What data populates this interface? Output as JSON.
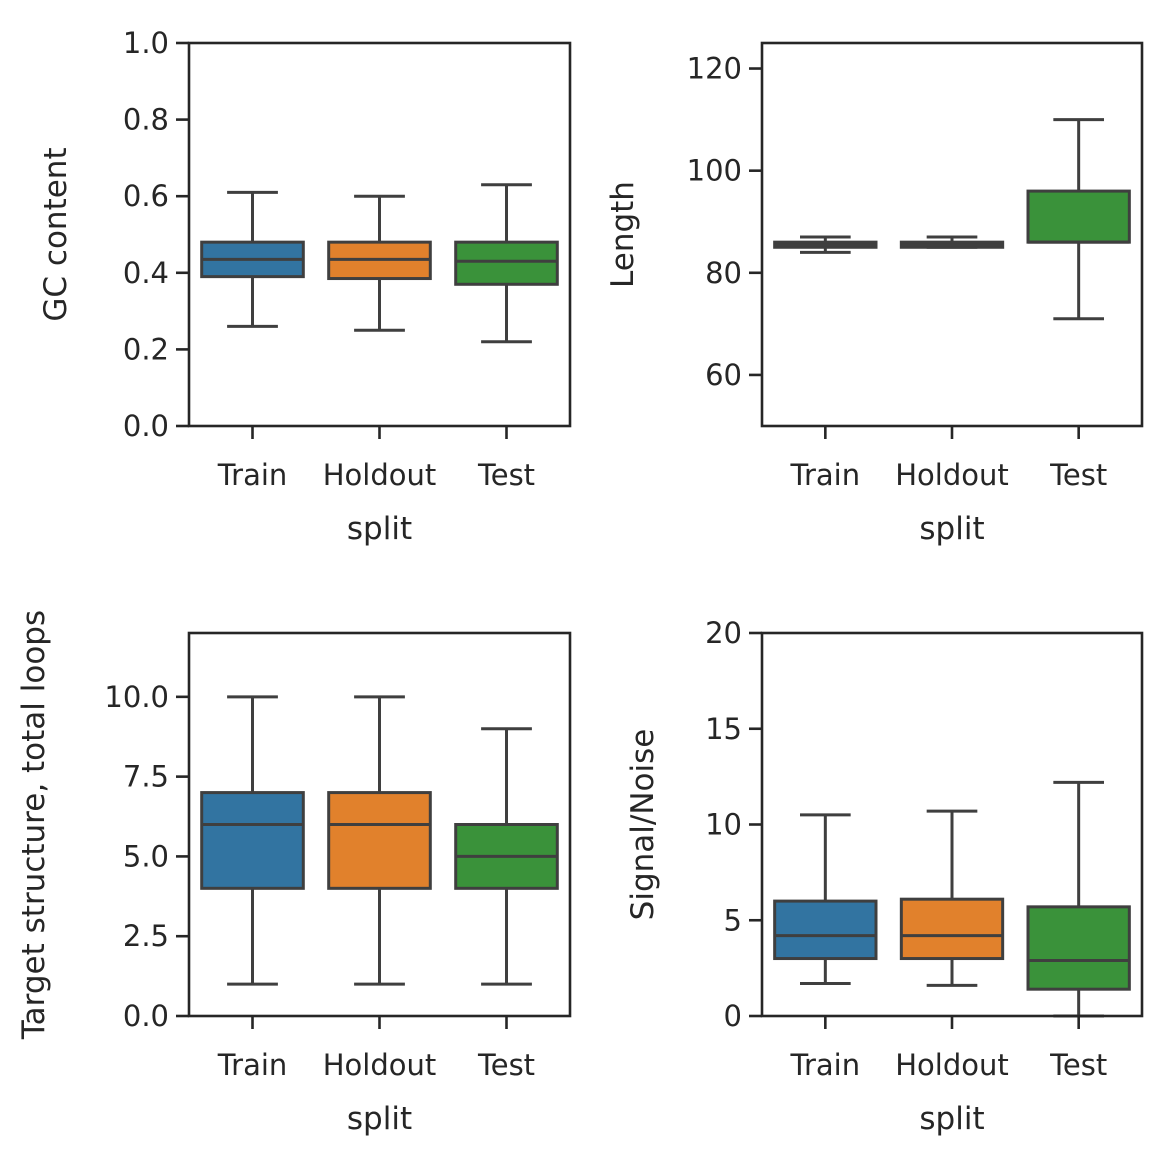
{
  "colors": {
    "Train": "#3274a1",
    "Holdout": "#e1812c",
    "Test": "#3a923a",
    "edge": "#3f3f3f",
    "axes": "#262626"
  },
  "chart_data": [
    {
      "type": "box",
      "xlabel": "split",
      "ylabel": "GC content",
      "categories": [
        "Train",
        "Holdout",
        "Test"
      ],
      "ylim": [
        0,
        1.0
      ],
      "yticks": [
        0.0,
        0.2,
        0.4,
        0.6,
        0.8,
        1.0
      ],
      "ytick_labels": [
        "0.0",
        "0.2",
        "0.4",
        "0.6",
        "0.8",
        "1.0"
      ],
      "boxes": [
        {
          "category": "Train",
          "whislo": 0.26,
          "q1": 0.39,
          "median": 0.435,
          "q3": 0.48,
          "whishi": 0.61
        },
        {
          "category": "Holdout",
          "whislo": 0.25,
          "q1": 0.385,
          "median": 0.435,
          "q3": 0.48,
          "whishi": 0.6
        },
        {
          "category": "Test",
          "whislo": 0.22,
          "q1": 0.37,
          "median": 0.43,
          "q3": 0.48,
          "whishi": 0.63
        }
      ]
    },
    {
      "type": "box",
      "xlabel": "split",
      "ylabel": "Length",
      "categories": [
        "Train",
        "Holdout",
        "Test"
      ],
      "ylim": [
        50,
        125
      ],
      "yticks": [
        60,
        80,
        100,
        120
      ],
      "ytick_labels": [
        "60",
        "80",
        "100",
        "120"
      ],
      "boxes": [
        {
          "category": "Train",
          "whislo": 84,
          "q1": 85,
          "median": 85.5,
          "q3": 86,
          "whishi": 87
        },
        {
          "category": "Holdout",
          "whislo": 85,
          "q1": 85,
          "median": 85.5,
          "q3": 86,
          "whishi": 87
        },
        {
          "category": "Test",
          "whislo": 71,
          "q1": 86,
          "median": 86,
          "q3": 96,
          "whishi": 110
        }
      ]
    },
    {
      "type": "box",
      "xlabel": "split",
      "ylabel": "Target structure, total loops",
      "categories": [
        "Train",
        "Holdout",
        "Test"
      ],
      "ylim": [
        0,
        12
      ],
      "yticks": [
        0.0,
        2.5,
        5.0,
        7.5,
        10.0
      ],
      "ytick_labels": [
        "0.0",
        "2.5",
        "5.0",
        "7.5",
        "10.0"
      ],
      "boxes": [
        {
          "category": "Train",
          "whislo": 1,
          "q1": 4,
          "median": 6,
          "q3": 7,
          "whishi": 10
        },
        {
          "category": "Holdout",
          "whislo": 1,
          "q1": 4,
          "median": 6,
          "q3": 7,
          "whishi": 10
        },
        {
          "category": "Test",
          "whislo": 1,
          "q1": 4,
          "median": 5,
          "q3": 6,
          "whishi": 9
        }
      ]
    },
    {
      "type": "box",
      "xlabel": "split",
      "ylabel": "Signal/Noise",
      "categories": [
        "Train",
        "Holdout",
        "Test"
      ],
      "ylim": [
        0,
        20
      ],
      "yticks": [
        0,
        5,
        10,
        15,
        20
      ],
      "ytick_labels": [
        "0",
        "5",
        "10",
        "15",
        "20"
      ],
      "boxes": [
        {
          "category": "Train",
          "whislo": 1.7,
          "q1": 3.0,
          "median": 4.2,
          "q3": 6.0,
          "whishi": 10.5
        },
        {
          "category": "Holdout",
          "whislo": 1.6,
          "q1": 3.0,
          "median": 4.2,
          "q3": 6.1,
          "whishi": 10.7
        },
        {
          "category": "Test",
          "whislo": 0.0,
          "q1": 1.4,
          "median": 2.9,
          "q3": 5.7,
          "whishi": 12.2
        }
      ]
    }
  ]
}
